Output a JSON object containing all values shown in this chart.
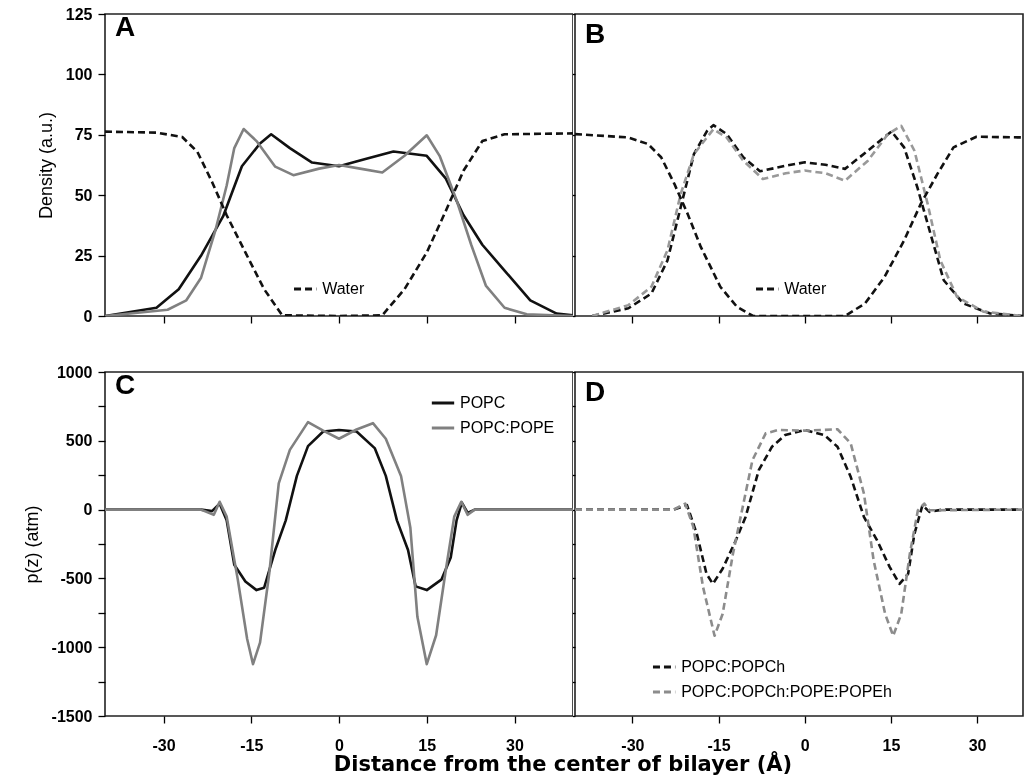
{
  "chart_data": [
    {
      "type": "line",
      "title": "A",
      "ylabel": "Density (a.u.)",
      "xlim": [
        -40,
        40
      ],
      "xticks": [
        -30,
        -15,
        0,
        15,
        30
      ],
      "ylim": [
        0,
        125
      ],
      "yticks": [
        0,
        25,
        50,
        75,
        100,
        125
      ],
      "tick_labels": "y",
      "legend": "bottom",
      "series": [
        {
          "color": "#111111",
          "line_style": "solid",
          "x": [
            -40,
            -31.2,
            -27.4,
            -23.6,
            -19.8,
            -16.6,
            -13.5,
            -11.6,
            -8.4,
            -4.6,
            0,
            4.2,
            9.3,
            15,
            18.2,
            21.3,
            24.5,
            28.3,
            32.7,
            37.2,
            40
          ],
          "values": [
            0,
            3.4,
            11.1,
            24.9,
            41.3,
            62,
            71.4,
            75.2,
            69.5,
            63.5,
            62,
            64.8,
            68.1,
            66.3,
            57.1,
            41.7,
            29.5,
            18.8,
            6.5,
            1,
            0.3
          ]
        },
        {
          "color": "#808080",
          "line_style": "solid",
          "x": [
            -40,
            -29.3,
            -26.1,
            -23.6,
            -21.1,
            -19.2,
            -17.9,
            -16.3,
            -14.1,
            -10.9,
            -7.8,
            -3.4,
            0,
            3.6,
            7.4,
            11.2,
            15,
            17.2,
            20.1,
            22.6,
            25.1,
            28.3,
            32.1,
            40
          ],
          "values": [
            0,
            2.6,
            6.5,
            15.7,
            35.7,
            54,
            69.5,
            77.4,
            72.4,
            61.8,
            58.3,
            61,
            62.5,
            61,
            59.4,
            66.3,
            74.8,
            66.3,
            47.9,
            29.5,
            12.6,
            3.4,
            0.7,
            0
          ]
        },
        {
          "name": "Water",
          "color": "#111111",
          "line_style": "dashed",
          "x": [
            -40,
            -31.2,
            -26.8,
            -24.2,
            -21.7,
            -19.2,
            -16,
            -12.8,
            -9.7,
            0,
            7.4,
            11.2,
            15,
            18.2,
            21.3,
            24.5,
            28.3,
            40
          ],
          "values": [
            76.3,
            75.9,
            74.1,
            67.9,
            55.5,
            41.7,
            26.3,
            11.1,
            0.3,
            0,
            0.3,
            11.1,
            26.3,
            43.2,
            60.2,
            72.4,
            75.2,
            75.6
          ]
        }
      ]
    },
    {
      "type": "line",
      "title": "B",
      "xlim": [
        -40,
        38
      ],
      "xticks": [
        -30,
        -15,
        0,
        15,
        30
      ],
      "ylim": [
        0,
        125
      ],
      "yticks": [
        0,
        25,
        50,
        75,
        100,
        125
      ],
      "tick_labels": false,
      "legend": "bottom",
      "series": [
        {
          "color": "#111111",
          "line_style": "dashed",
          "x": [
            -37,
            -30.7,
            -26.7,
            -23.9,
            -21.6,
            -19.3,
            -17,
            -15.9,
            -13.6,
            -10.7,
            -7.8,
            -3.3,
            0,
            3.6,
            7,
            11,
            15.1,
            17.3,
            19.6,
            21.9,
            24.2,
            27.6,
            32.2,
            38
          ],
          "values": [
            0,
            3.2,
            9.3,
            23,
            45,
            67,
            76.6,
            79,
            75.3,
            65.7,
            59.9,
            62.2,
            63.6,
            62.6,
            60.9,
            68.4,
            76.4,
            69.8,
            53.3,
            34,
            14.8,
            5.2,
            1.1,
            0
          ]
        },
        {
          "color": "#999999",
          "line_style": "dashed",
          "x": [
            -37,
            -30.7,
            -26.7,
            -23.9,
            -21.6,
            -19.3,
            -15.9,
            -13.6,
            -10.7,
            -7.3,
            -3.3,
            0,
            3.6,
            7,
            11,
            14.5,
            16.8,
            19.1,
            21.4,
            23.6,
            26.5,
            31.1,
            38
          ],
          "values": [
            0,
            4.5,
            12.1,
            27.2,
            50.5,
            67,
            77.3,
            73.9,
            64.3,
            56.7,
            59.1,
            60.2,
            59.1,
            56,
            64.3,
            75.3,
            78.7,
            68.4,
            46.4,
            23.1,
            8,
            1.8,
            0
          ]
        },
        {
          "name": "Water",
          "color": "#111111",
          "line_style": "dashed",
          "x": [
            -40,
            -30.7,
            -27.3,
            -25,
            -22.7,
            -20.4,
            -18.1,
            -14.7,
            -11.8,
            -9,
            7,
            10.5,
            13.9,
            17.3,
            20.2,
            23.1,
            25.9,
            29.9,
            38
          ],
          "values": [
            75.3,
            73.9,
            71.2,
            65.7,
            54.7,
            42.3,
            28.6,
            12.1,
            3.8,
            0,
            0,
            5.2,
            16.2,
            31.3,
            46.4,
            58.8,
            69.8,
            74.2,
            73.9
          ]
        }
      ]
    },
    {
      "type": "line",
      "title": "C",
      "xlabel": "Distance from the center of bilayer (Å)",
      "ylabel": "p(z) (atm)",
      "xlim": [
        -40,
        40
      ],
      "xticks": [
        -30,
        -15,
        0,
        15,
        30
      ],
      "ylim": [
        -1500,
        1000
      ],
      "yticks": [
        -1500,
        {
          "value": -1250,
          "label": null
        },
        -1000,
        {
          "value": -750,
          "label": null
        },
        -500,
        {
          "value": -250,
          "label": null
        },
        0,
        {
          "value": 250,
          "label": null
        },
        500,
        {
          "value": 750,
          "label": null
        },
        1000
      ],
      "legend": "top right",
      "series": [
        {
          "name": "POPC",
          "color": "#111111",
          "line_style": "solid",
          "x": [
            -40,
            -23.6,
            -21.7,
            -20.4,
            -19.2,
            -17.9,
            -16,
            -14.1,
            -12.8,
            -10.9,
            -9.1,
            -7.2,
            -5.3,
            -2.7,
            0,
            3,
            6.1,
            8,
            9.9,
            11.8,
            13.1,
            15,
            17.5,
            19.1,
            20.1,
            21,
            22,
            23.2,
            40
          ],
          "values": [
            0,
            0,
            -11,
            43,
            -78,
            -401,
            -523,
            -585,
            -568,
            -294,
            -78,
            245,
            461,
            568,
            579,
            568,
            447,
            245,
            -78,
            -294,
            -558,
            -585,
            -509,
            -348,
            -78,
            51,
            -24,
            0,
            0
          ]
        },
        {
          "name": "POPC:POPE",
          "color": "#808080",
          "line_style": "solid",
          "x": [
            -40,
            -23.6,
            -21.4,
            -20.4,
            -19.2,
            -17.3,
            -15.7,
            -14.7,
            -13.5,
            -11.9,
            -10.3,
            -8.4,
            -5.3,
            -2.7,
            0,
            3,
            5.8,
            8,
            10.6,
            12.2,
            13.4,
            15,
            16.6,
            18.2,
            19.7,
            20.9,
            22,
            23.2,
            40
          ],
          "values": [
            0,
            0,
            -38,
            57,
            -51,
            -509,
            -940,
            -1123,
            -967,
            -455,
            191,
            434,
            636,
            574,
            515,
            582,
            628,
            515,
            245,
            -132,
            -779,
            -1123,
            -913,
            -455,
            -51,
            57,
            -38,
            0,
            0
          ]
        }
      ]
    },
    {
      "type": "line",
      "title": "D",
      "xlim": [
        -40,
        38
      ],
      "xticks": [
        -30,
        -15,
        0,
        15,
        30
      ],
      "ylim": [
        -1500,
        1000
      ],
      "yticks": [
        -1500,
        {
          "value": -1250,
          "label": null
        },
        -1000,
        {
          "value": -750,
          "label": null
        },
        -500,
        {
          "value": -250,
          "label": null
        },
        0,
        {
          "value": 250,
          "label": null
        },
        500,
        {
          "value": 750,
          "label": null
        },
        1000
      ],
      "tick_labels": "x",
      "legend": "bottom left",
      "series": [
        {
          "name": "POPC:POPCh",
          "color": "#111111",
          "line_style": "dashed",
          "x": [
            -40,
            -22.8,
            -20.5,
            -18.8,
            -17.1,
            -16,
            -14.3,
            -12,
            -10.3,
            -8,
            -5.7,
            -3.4,
            0,
            3.4,
            5.7,
            8,
            10.3,
            12.6,
            14.8,
            16.5,
            18,
            19.1,
            20.5,
            21.7,
            24,
            38
          ],
          "values": [
            0,
            0,
            32,
            -175,
            -467,
            -540,
            -430,
            -224,
            -53,
            287,
            457,
            542,
            579,
            542,
            457,
            238,
            -53,
            -224,
            -418,
            -540,
            -467,
            -175,
            32,
            -17,
            0,
            0
          ]
        },
        {
          "name": "POPC:POPCh:POPE:POPEh",
          "color": "#8c8c8c",
          "line_style": "dashed",
          "x": [
            -40,
            -22.8,
            -20.8,
            -19.4,
            -17.7,
            -15.7,
            -14.3,
            -12.5,
            -10.8,
            -9.1,
            -6.8,
            -4.6,
            0,
            3.4,
            5.7,
            8,
            10.3,
            12,
            14,
            15.4,
            16.8,
            18.3,
            19.7,
            20.8,
            21.7,
            38
          ],
          "values": [
            0,
            0,
            44,
            -126,
            -564,
            -917,
            -759,
            -321,
            19,
            360,
            554,
            579,
            574,
            579,
            584,
            481,
            117,
            -370,
            -759,
            -917,
            -759,
            -321,
            -5,
            44,
            -5,
            0
          ]
        }
      ]
    }
  ]
}
